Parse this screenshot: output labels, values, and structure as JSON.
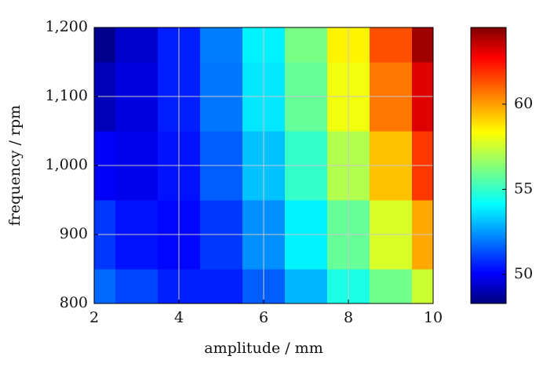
{
  "chart_data": {
    "type": "heatmap",
    "xlabel": "amplitude / mm",
    "ylabel": "frequency / rpm",
    "x": [
      2,
      3,
      4,
      5,
      6,
      7,
      8,
      9,
      10
    ],
    "y": [
      800,
      900,
      1000,
      1100,
      1200
    ],
    "z": [
      [
        52,
        51.4,
        50.8,
        50.8,
        51.8,
        53.2,
        54.8,
        56.2,
        57.6
      ],
      [
        51.2,
        50.6,
        50.4,
        51.2,
        52.6,
        54.2,
        56,
        57.8,
        59.8
      ],
      [
        50.2,
        50,
        50.6,
        51.8,
        53.4,
        55.2,
        57.2,
        59.4,
        61.6
      ],
      [
        49.2,
        49.8,
        50.8,
        52.2,
        54,
        56,
        58.2,
        60.6,
        63
      ],
      [
        48.5,
        49.5,
        50.8,
        52.3,
        54.2,
        56.3,
        58.6,
        61.2,
        64
      ]
    ],
    "xlim": [
      2,
      10
    ],
    "xticks": [
      2,
      4,
      6,
      8,
      10
    ],
    "ylim": [
      800,
      1200
    ],
    "yticks": [
      800,
      900,
      {
        "value": 1000,
        "label": "1,000"
      },
      {
        "value": 1100,
        "label": "1,100"
      },
      {
        "value": 1200,
        "label": "1,200"
      }
    ],
    "clim": [
      48.3,
      64.5
    ],
    "cticks": [
      50,
      55,
      60
    ],
    "colormap": "jet",
    "grid": true
  }
}
